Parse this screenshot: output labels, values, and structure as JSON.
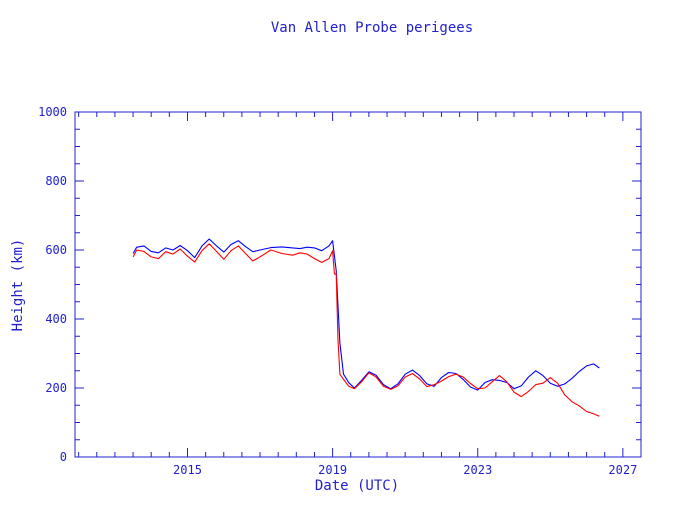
{
  "chart_data": {
    "type": "line",
    "title": "Van Allen Probe perigees",
    "xlabel": "Date (UTC)",
    "ylabel": "Height (km)",
    "xlim": [
      2011.9,
      2027.5
    ],
    "ylim": [
      0,
      1000
    ],
    "x_ticks": [
      2015,
      2019,
      2023,
      2027
    ],
    "x_tick_labels": [
      "2015",
      "2019",
      "2023",
      "2027"
    ],
    "x_minor_step": 0.5,
    "y_ticks": [
      0,
      200,
      400,
      600,
      800,
      1000
    ],
    "y_tick_labels": [
      "0",
      "200",
      "400",
      "600",
      "800",
      "1000"
    ],
    "y_minor_step": 50,
    "grid": false,
    "legend": "none",
    "series": [
      {
        "color": "#0000ff",
        "x": [
          2013.5,
          2013.6,
          2013.8,
          2014.0,
          2014.2,
          2014.4,
          2014.6,
          2014.8,
          2015.0,
          2015.2,
          2015.4,
          2015.6,
          2015.8,
          2016.0,
          2016.2,
          2016.4,
          2016.6,
          2016.8,
          2017.0,
          2017.3,
          2017.6,
          2017.9,
          2018.1,
          2018.3,
          2018.5,
          2018.7,
          2018.9,
          2019.0,
          2019.1,
          2019.2,
          2019.3,
          2019.45,
          2019.6,
          2019.8,
          2020.0,
          2020.2,
          2020.4,
          2020.6,
          2020.8,
          2021.0,
          2021.2,
          2021.4,
          2021.6,
          2021.8,
          2022.0,
          2022.2,
          2022.4,
          2022.6,
          2022.8,
          2023.0,
          2023.2,
          2023.4,
          2023.6,
          2023.8,
          2024.0,
          2024.2,
          2024.4,
          2024.6,
          2024.8,
          2025.0,
          2025.2,
          2025.4,
          2025.6,
          2025.8,
          2026.0,
          2026.2,
          2026.35
        ],
        "values": [
          590,
          608,
          612,
          596,
          592,
          606,
          600,
          613,
          598,
          578,
          612,
          632,
          612,
          594,
          616,
          627,
          610,
          595,
          600,
          607,
          609,
          606,
          604,
          608,
          606,
          598,
          612,
          627,
          540,
          330,
          240,
          215,
          200,
          222,
          247,
          237,
          210,
          198,
          212,
          240,
          252,
          236,
          212,
          205,
          230,
          245,
          242,
          225,
          203,
          194,
          216,
          224,
          222,
          216,
          198,
          206,
          232,
          250,
          236,
          214,
          205,
          212,
          228,
          248,
          264,
          270,
          258
        ]
      },
      {
        "color": "#ff0000",
        "x": [
          2013.5,
          2013.6,
          2013.8,
          2014.0,
          2014.2,
          2014.4,
          2014.6,
          2014.8,
          2015.0,
          2015.2,
          2015.4,
          2015.6,
          2015.8,
          2016.0,
          2016.2,
          2016.4,
          2016.6,
          2016.8,
          2017.0,
          2017.3,
          2017.6,
          2017.9,
          2018.1,
          2018.3,
          2018.5,
          2018.7,
          2018.9,
          2019.0,
          2019.05,
          2019.1,
          2019.15,
          2019.2,
          2019.3,
          2019.45,
          2019.6,
          2019.8,
          2020.0,
          2020.2,
          2020.4,
          2020.6,
          2020.8,
          2021.0,
          2021.2,
          2021.4,
          2021.6,
          2021.8,
          2022.0,
          2022.2,
          2022.4,
          2022.6,
          2022.8,
          2023.0,
          2023.2,
          2023.4,
          2023.6,
          2023.8,
          2024.0,
          2024.2,
          2024.4,
          2024.6,
          2024.8,
          2025.0,
          2025.2,
          2025.4,
          2025.6,
          2025.8,
          2026.0,
          2026.2,
          2026.35
        ],
        "values": [
          580,
          600,
          596,
          580,
          575,
          595,
          588,
          603,
          582,
          565,
          598,
          618,
          596,
          573,
          598,
          612,
          590,
          568,
          580,
          600,
          590,
          585,
          592,
          588,
          575,
          564,
          575,
          598,
          530,
          530,
          340,
          240,
          225,
          205,
          198,
          218,
          244,
          232,
          205,
          196,
          206,
          232,
          242,
          226,
          204,
          210,
          220,
          233,
          240,
          232,
          213,
          198,
          200,
          218,
          236,
          218,
          188,
          175,
          190,
          210,
          214,
          230,
          214,
          180,
          160,
          148,
          132,
          125,
          118
        ]
      }
    ]
  }
}
